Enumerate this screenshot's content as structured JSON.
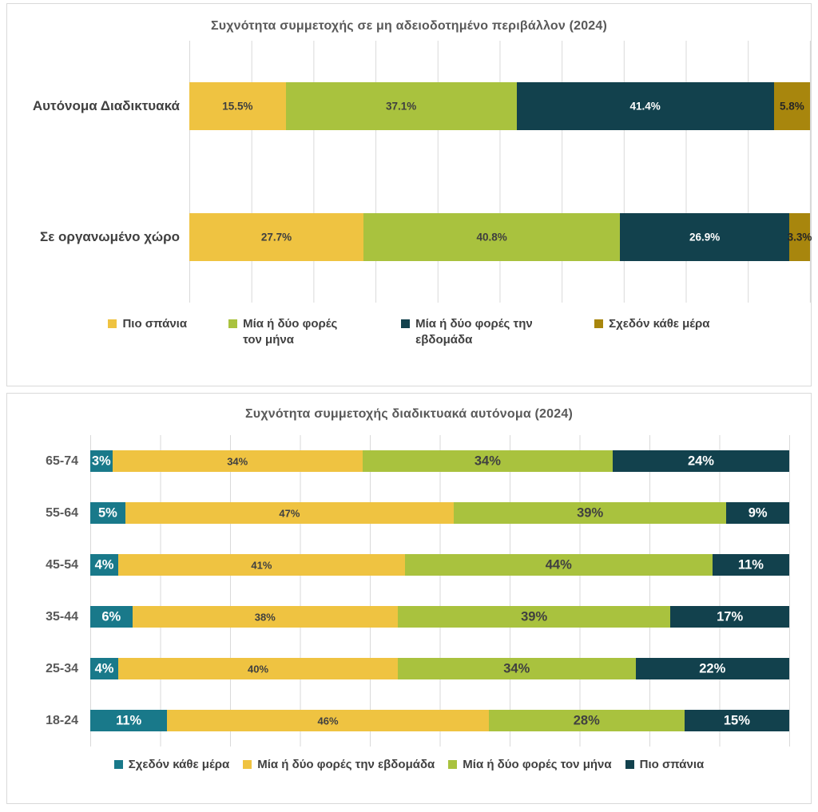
{
  "page": {
    "background": "#FFFFFF"
  },
  "colors": {
    "title_text": "#595959",
    "axis_text": "#404040",
    "gridline": "#D9D9D9",
    "panel_border": "#D9D9D9"
  },
  "chart_data": [
    {
      "type": "bar",
      "variant": "horizontal-stacked-100",
      "title": "Συχνότητα συμμετοχής σε μη αδειοδοτημένο περιβάλλον (2024)",
      "categories": [
        "Αυτόνομα Διαδικτυακά",
        "Σε οργανωμένο χώρο"
      ],
      "series": [
        {
          "name": "Πιο σπάνια",
          "color": "#EFC341",
          "label_color": "#3F3F3F",
          "values": [
            15.5,
            27.7
          ],
          "labels": [
            "15.5%",
            "27.7%"
          ]
        },
        {
          "name": "Μία ή δύο φορές τον μήνα",
          "color": "#A9C23E",
          "label_color": "#3F3F3F",
          "values": [
            37.1,
            40.8
          ],
          "labels": [
            "37.1%",
            "40.8%"
          ]
        },
        {
          "name": "Μία ή δύο φορές την εβδομάδα",
          "color": "#12414D",
          "label_color": "#FFFFFF",
          "values": [
            41.4,
            26.9
          ],
          "labels": [
            "41.4%",
            "26.9%"
          ]
        },
        {
          "name": "Σχεδόν κάθε μέρα",
          "color": "#A8860D",
          "label_color": "#262626",
          "values": [
            5.8,
            3.3
          ],
          "labels": [
            "5.8%",
            "3.3%"
          ]
        }
      ],
      "xlim": [
        0,
        100
      ],
      "gridlines": "vertical every 10%",
      "legend_position": "bottom"
    },
    {
      "type": "bar",
      "variant": "horizontal-stacked-100",
      "title": "Συχνότητα συμμετοχής διαδικτυακά αυτόνομα (2024)",
      "categories": [
        "65-74",
        "55-64",
        "45-54",
        "35-44",
        "25-34",
        "18-24"
      ],
      "series": [
        {
          "name": "Σχεδόν κάθε μέρα",
          "color": "#19798A",
          "label_color": "#FFFFFF",
          "values": [
            3,
            5,
            4,
            6,
            4,
            11
          ],
          "labels": [
            "3%",
            "5%",
            "4%",
            "6%",
            "4%",
            "11%"
          ]
        },
        {
          "name": "Μία ή δύο φορές την εβδομάδα",
          "color": "#EFC341",
          "label_color": "#404040",
          "values": [
            34,
            47,
            41,
            38,
            40,
            46
          ],
          "labels": [
            "34%",
            "47%",
            "41%",
            "38%",
            "40%",
            "46%"
          ]
        },
        {
          "name": "Μία ή δύο φορές τον μήνα",
          "color": "#A9C23E",
          "label_color": "#404040",
          "values": [
            34,
            39,
            44,
            39,
            34,
            28
          ],
          "labels": [
            "34%",
            "39%",
            "44%",
            "39%",
            "34%",
            "28%"
          ]
        },
        {
          "name": "Πιο σπάνια",
          "color": "#12414D",
          "label_color": "#FFFFFF",
          "values": [
            24,
            9,
            11,
            17,
            22,
            15
          ],
          "labels": [
            "24%",
            "9%",
            "11%",
            "17%",
            "22%",
            "15%"
          ]
        }
      ],
      "xlim": [
        0,
        100
      ],
      "gridlines": "vertical every 10%",
      "legend_position": "bottom"
    }
  ]
}
